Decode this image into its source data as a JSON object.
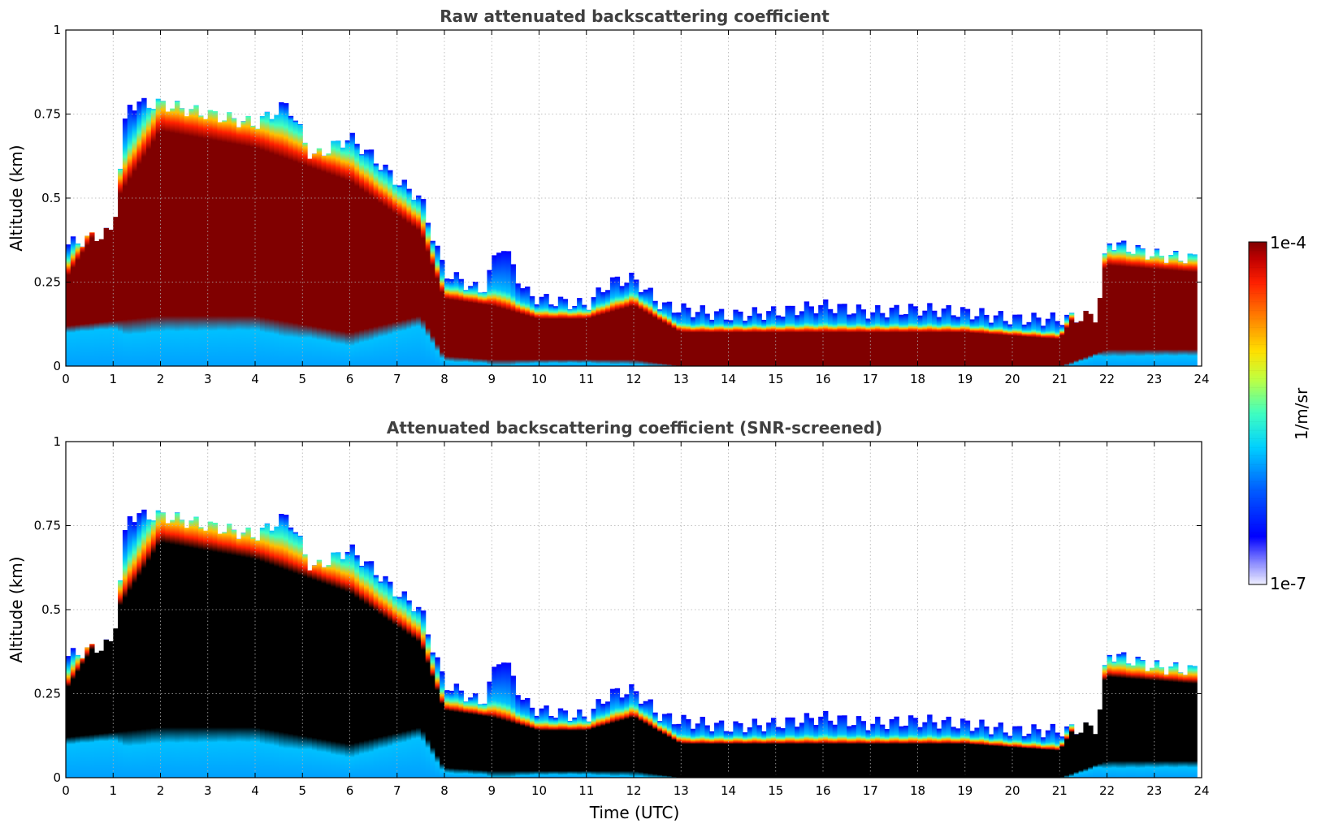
{
  "chart_data": [
    {
      "type": "heatmap",
      "title": "Raw attenuated backscattering coefficient",
      "xlabel": "",
      "ylabel": "Altitude (km)",
      "xlim": [
        0,
        24
      ],
      "ylim": [
        0,
        1
      ],
      "xticks": [
        "0",
        "1",
        "2",
        "3",
        "4",
        "5",
        "6",
        "7",
        "8",
        "9",
        "10",
        "11",
        "12",
        "13",
        "14",
        "15",
        "16",
        "17",
        "18",
        "19",
        "20",
        "21",
        "22",
        "23",
        "24"
      ],
      "yticks": [
        "0",
        "0.25",
        "0.5",
        "0.75",
        "1"
      ],
      "grid": true,
      "cloud_top_km": [
        [
          0,
          0.36
        ],
        [
          1,
          0.4
        ],
        [
          1.3,
          0.78
        ],
        [
          2,
          0.78
        ],
        [
          3,
          0.75
        ],
        [
          4,
          0.72
        ],
        [
          4.7,
          0.78
        ],
        [
          5.2,
          0.62
        ],
        [
          6,
          0.68
        ],
        [
          6.5,
          0.62
        ],
        [
          7,
          0.55
        ],
        [
          7.5,
          0.5
        ],
        [
          8,
          0.28
        ],
        [
          8.8,
          0.22
        ],
        [
          9.2,
          0.37
        ],
        [
          9.7,
          0.22
        ],
        [
          10,
          0.2
        ],
        [
          11,
          0.18
        ],
        [
          11.5,
          0.25
        ],
        [
          12,
          0.26
        ],
        [
          12.6,
          0.18
        ],
        [
          13,
          0.17
        ],
        [
          14,
          0.15
        ],
        [
          15,
          0.16
        ],
        [
          16,
          0.18
        ],
        [
          17,
          0.16
        ],
        [
          18,
          0.17
        ],
        [
          19,
          0.16
        ],
        [
          20,
          0.14
        ],
        [
          21,
          0.14
        ],
        [
          21.8,
          0.15
        ],
        [
          22,
          0.37
        ],
        [
          23,
          0.33
        ],
        [
          23.8,
          0.32
        ]
      ],
      "dense_layer_km": [
        [
          0,
          [
            0.12,
            0.26
          ]
        ],
        [
          2,
          [
            0.15,
            0.7
          ]
        ],
        [
          4,
          [
            0.15,
            0.65
          ]
        ],
        [
          6,
          [
            0.1,
            0.55
          ]
        ],
        [
          7.5,
          [
            0.15,
            0.4
          ]
        ],
        [
          8,
          [
            0.03,
            0.2
          ]
        ],
        [
          9,
          [
            0.02,
            0.18
          ]
        ],
        [
          10,
          [
            0.02,
            0.14
          ]
        ],
        [
          11,
          [
            0.02,
            0.14
          ]
        ],
        [
          12,
          [
            0.02,
            0.18
          ]
        ],
        [
          13,
          [
            0.0,
            0.1
          ]
        ],
        [
          16,
          [
            0.0,
            0.1
          ]
        ],
        [
          19,
          [
            0.0,
            0.1
          ]
        ],
        [
          21,
          [
            0.0,
            0.08
          ]
        ],
        [
          22,
          [
            0.05,
            0.3
          ]
        ],
        [
          23.8,
          [
            0.05,
            0.28
          ]
        ]
      ]
    },
    {
      "type": "heatmap",
      "title": "Attenuated backscattering coefficient (SNR-screened)",
      "xlabel": "Time (UTC)",
      "ylabel": "Altitude (km)",
      "xlim": [
        0,
        24
      ],
      "ylim": [
        0,
        1
      ],
      "xticks": [
        "0",
        "1",
        "2",
        "3",
        "4",
        "5",
        "6",
        "7",
        "8",
        "9",
        "10",
        "11",
        "12",
        "13",
        "14",
        "15",
        "16",
        "17",
        "18",
        "19",
        "20",
        "21",
        "22",
        "23",
        "24"
      ],
      "yticks": [
        "0",
        "0.25",
        "0.5",
        "0.75",
        "1"
      ],
      "grid": true,
      "screened_color": "#000000"
    }
  ],
  "colorbar": {
    "label": "1/m/sr",
    "max_label": "1e-4",
    "min_label": "1e-7",
    "colormap": "jet",
    "colors": [
      "#e8e8ff",
      "#8080ff",
      "#0000ff",
      "#0080ff",
      "#00e0ff",
      "#40ffc0",
      "#c0ff40",
      "#ffe000",
      "#ff8000",
      "#ff2000",
      "#c00000",
      "#800000"
    ]
  }
}
